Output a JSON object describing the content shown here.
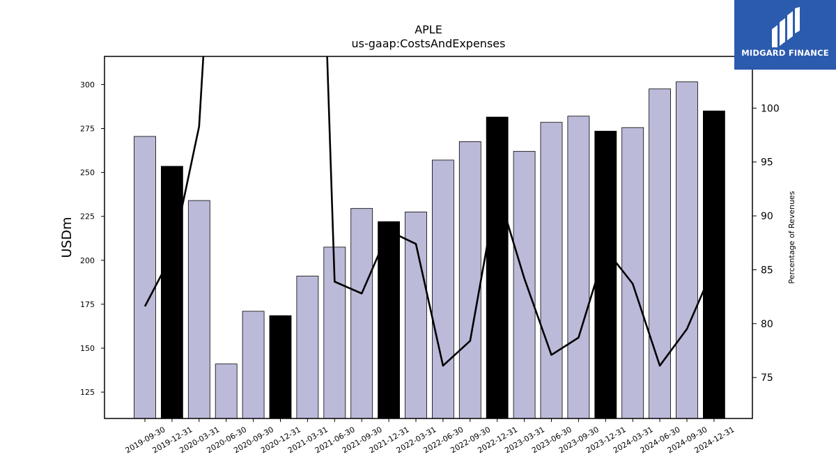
{
  "chart_data": {
    "type": "bar",
    "title": "APLE",
    "subtitle": "us-gaap:CostsAndExpenses",
    "ylabel": "USDm",
    "y2label": "Percentage of Revenues",
    "ylim": [
      110,
      316
    ],
    "y2lim": [
      71.2,
      104.8
    ],
    "yticks": [
      125,
      150,
      175,
      200,
      225,
      250,
      275,
      300
    ],
    "y2ticks": [
      75,
      80,
      85,
      90,
      95,
      100
    ],
    "categories": [
      "2019-09-30",
      "2019-12-31",
      "2020-03-31",
      "2020-06-30",
      "2020-09-30",
      "2020-12-31",
      "2021-03-31",
      "2021-06-30",
      "2021-09-30",
      "2021-12-31",
      "2022-03-31",
      "2022-06-30",
      "2022-09-30",
      "2022-12-31",
      "2023-03-31",
      "2023-06-30",
      "2023-09-30",
      "2023-12-31",
      "2024-03-31",
      "2024-06-30",
      "2024-09-30",
      "2024-12-31"
    ],
    "values": [
      270.5,
      253.5,
      234,
      141,
      171,
      168.5,
      191,
      207.5,
      229.5,
      222,
      227.5,
      257,
      267.5,
      281.5,
      262,
      278.5,
      282,
      273.5,
      275.5,
      297.5,
      301.5,
      285
    ],
    "bar_colors": [
      "#bcbad9",
      "#000000",
      "#bcbad9",
      "#bcbad9",
      "#bcbad9",
      "#000000",
      "#bcbad9",
      "#bcbad9",
      "#bcbad9",
      "#000000",
      "#bcbad9",
      "#bcbad9",
      "#bcbad9",
      "#000000",
      "#bcbad9",
      "#bcbad9",
      "#bcbad9",
      "#000000",
      "#bcbad9",
      "#bcbad9",
      "#bcbad9",
      "#000000"
    ],
    "line_series": {
      "values": [
        81.6,
        86.4,
        98.3,
        140,
        160,
        160,
        160,
        83.9,
        82.8,
        88.6,
        87.4,
        76.1,
        78.4,
        92.5,
        84.2,
        77.1,
        78.7,
        86.9,
        83.7,
        76.1,
        79.5,
        85.3
      ],
      "color": "#000000"
    },
    "grid": false
  },
  "brand": {
    "name": "MIDGARD FINANCE",
    "color": "#2b5bad"
  }
}
